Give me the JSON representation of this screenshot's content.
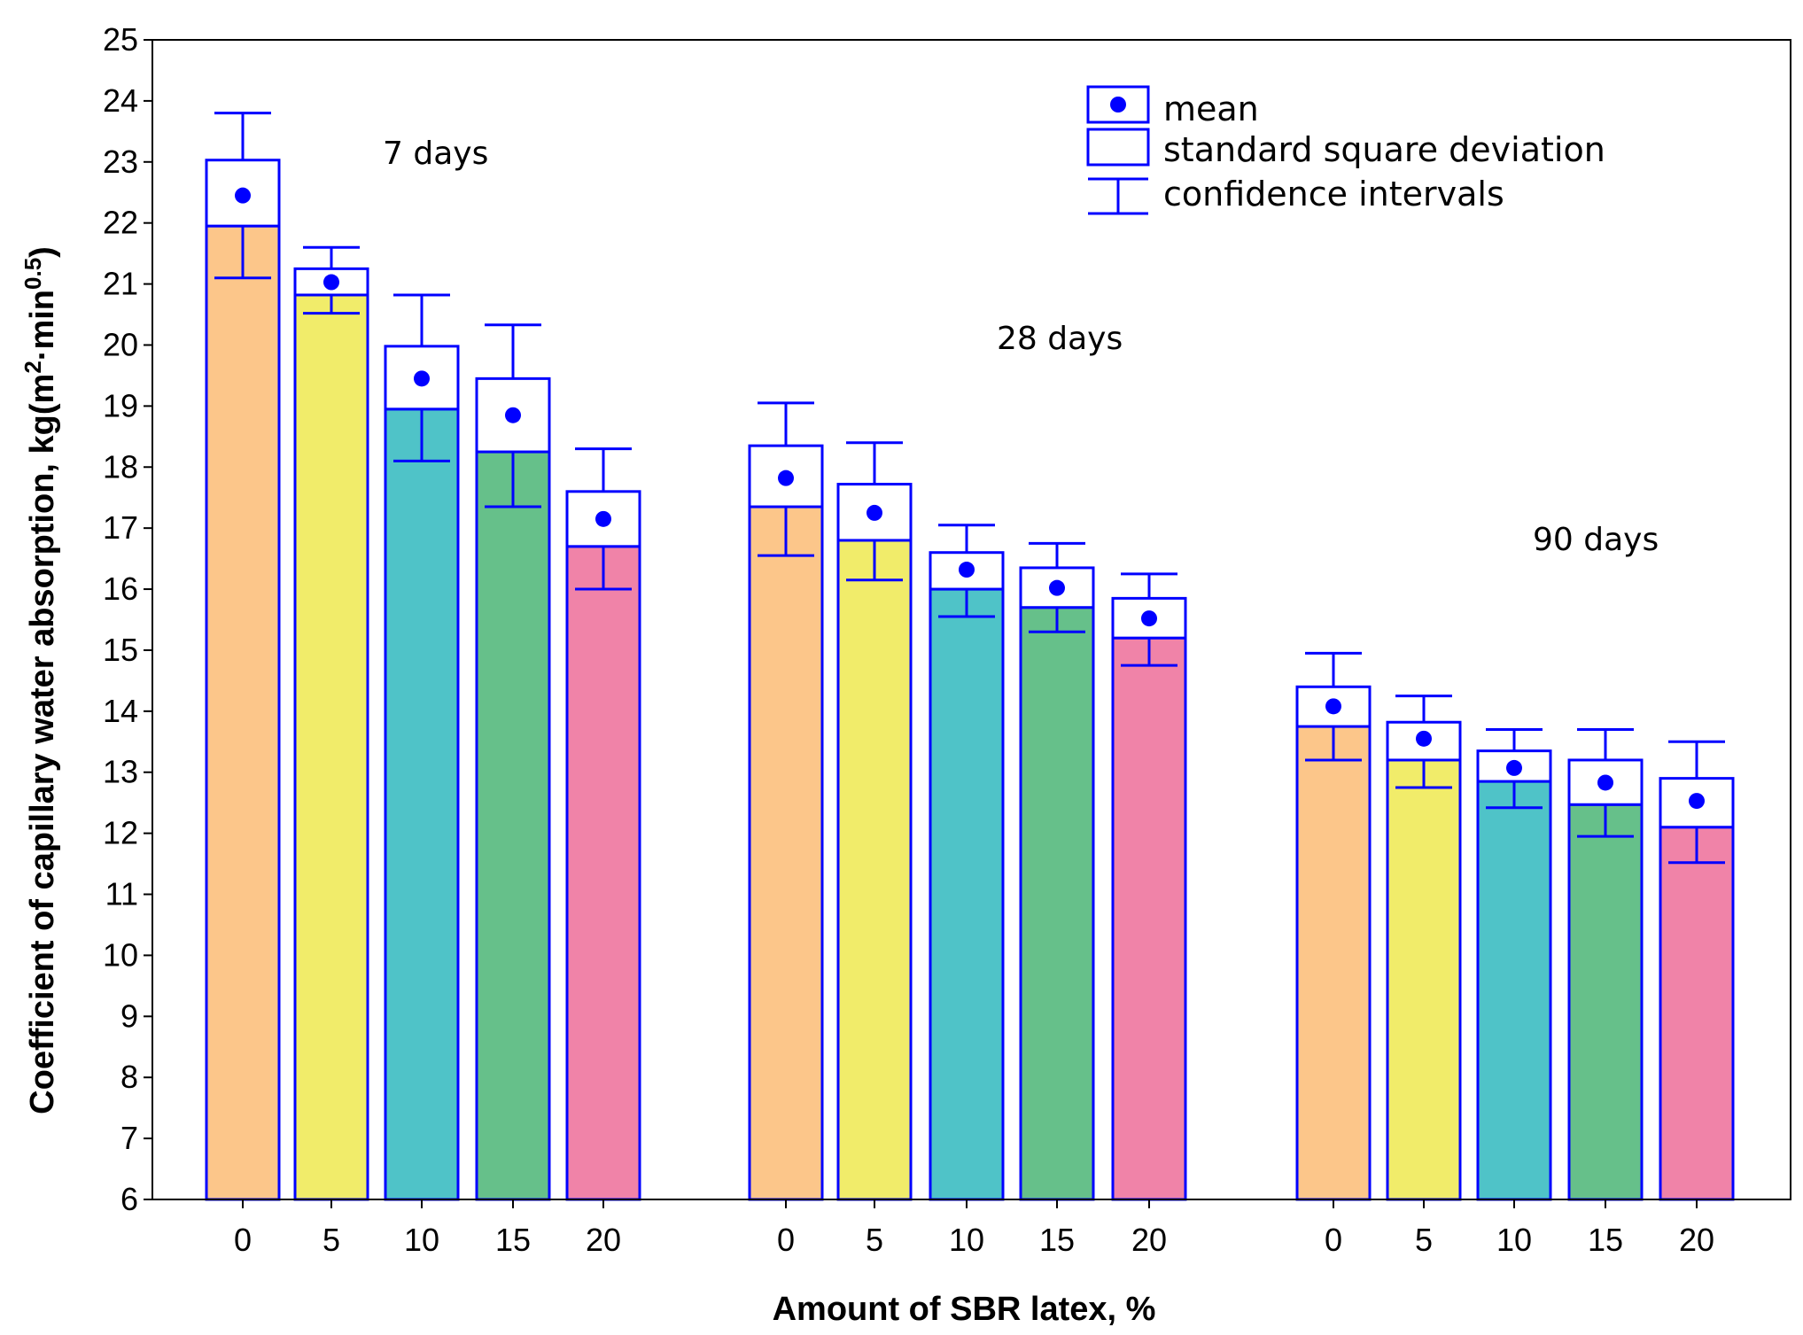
{
  "chart_data": {
    "type": "bar",
    "title": "",
    "xlabel": "Amount of SBR latex, %",
    "ylabel": "Coefficient of capillary water absorption, kg(m",
    "ylabel_unit_a": "2",
    "ylabel_unit_mid": "·min",
    "ylabel_unit_b": "0.5",
    "ylabel_unit_end": ")",
    "ylim": [
      6,
      25
    ],
    "yticks": [
      6,
      7,
      8,
      9,
      10,
      11,
      12,
      13,
      14,
      15,
      16,
      17,
      18,
      19,
      20,
      21,
      22,
      23,
      24,
      25
    ],
    "categories": [
      "0",
      "5",
      "10",
      "15",
      "20"
    ],
    "series_colors": [
      "#FCC68A",
      "#F1EC6A",
      "#4FC3C8",
      "#66C08A",
      "#F083A8"
    ],
    "accent_color": "#0000FF",
    "groups": [
      {
        "label": "7 days",
        "bars": [
          {
            "category": "0",
            "mean": 22.45,
            "sd_low": 21.95,
            "sd_high": 23.03,
            "ci_low": 21.1,
            "ci_high": 23.8
          },
          {
            "category": "5",
            "mean": 21.03,
            "sd_low": 20.82,
            "sd_high": 21.25,
            "ci_low": 20.52,
            "ci_high": 21.6
          },
          {
            "category": "10",
            "mean": 19.45,
            "sd_low": 18.95,
            "sd_high": 19.98,
            "ci_low": 18.1,
            "ci_high": 20.82
          },
          {
            "category": "15",
            "mean": 18.85,
            "sd_low": 18.25,
            "sd_high": 19.45,
            "ci_low": 17.35,
            "ci_high": 20.33
          },
          {
            "category": "20",
            "mean": 17.15,
            "sd_low": 16.7,
            "sd_high": 17.6,
            "ci_low": 16.0,
            "ci_high": 18.3
          }
        ]
      },
      {
        "label": "28 days",
        "bars": [
          {
            "category": "0",
            "mean": 17.82,
            "sd_low": 17.35,
            "sd_high": 18.35,
            "ci_low": 16.55,
            "ci_high": 19.05
          },
          {
            "category": "5",
            "mean": 17.25,
            "sd_low": 16.8,
            "sd_high": 17.72,
            "ci_low": 16.15,
            "ci_high": 18.4
          },
          {
            "category": "10",
            "mean": 16.32,
            "sd_low": 16.0,
            "sd_high": 16.6,
            "ci_low": 15.55,
            "ci_high": 17.05
          },
          {
            "category": "15",
            "mean": 16.02,
            "sd_low": 15.7,
            "sd_high": 16.35,
            "ci_low": 15.3,
            "ci_high": 16.75
          },
          {
            "category": "20",
            "mean": 15.52,
            "sd_low": 15.2,
            "sd_high": 15.85,
            "ci_low": 14.75,
            "ci_high": 16.25
          }
        ]
      },
      {
        "label": "90 days",
        "bars": [
          {
            "category": "0",
            "mean": 14.08,
            "sd_low": 13.75,
            "sd_high": 14.4,
            "ci_low": 13.2,
            "ci_high": 14.95
          },
          {
            "category": "5",
            "mean": 13.55,
            "sd_low": 13.2,
            "sd_high": 13.82,
            "ci_low": 12.75,
            "ci_high": 14.25
          },
          {
            "category": "10",
            "mean": 13.07,
            "sd_low": 12.85,
            "sd_high": 13.35,
            "ci_low": 12.42,
            "ci_high": 13.7
          },
          {
            "category": "15",
            "mean": 12.83,
            "sd_low": 12.47,
            "sd_high": 13.2,
            "ci_low": 11.95,
            "ci_high": 13.7
          },
          {
            "category": "20",
            "mean": 12.53,
            "sd_low": 12.1,
            "sd_high": 12.9,
            "ci_low": 11.52,
            "ci_high": 13.5
          }
        ]
      }
    ],
    "legend": {
      "placement": "top-right",
      "entries": [
        "mean",
        "standard square deviation",
        "confidence intervals"
      ]
    }
  }
}
